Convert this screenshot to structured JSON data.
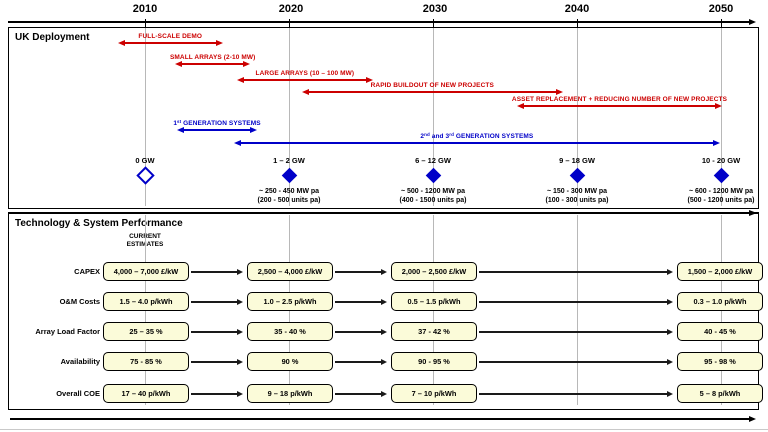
{
  "colors": {
    "red": "#CC0000",
    "blue": "#0000C8",
    "box_fill": "#FBFBD9",
    "grid": "#B8B8B8",
    "black": "#000000"
  },
  "timeline": {
    "years": [
      "2010",
      "2020",
      "2030",
      "2040",
      "2050"
    ]
  },
  "deployment": {
    "title": "UK Deployment",
    "phases": [
      {
        "label": "FULL-SCALE DEMO",
        "start": 2008.1,
        "end": 2015.4
      },
      {
        "label": "SMALL ARRAYS (2-10 MW)",
        "start": 2012.1,
        "end": 2017.3
      },
      {
        "label": "LARGE ARRAYS (10 – 100 MW)",
        "start": 2016.4,
        "end": 2025.8
      },
      {
        "label": "RAPID BUILDOUT OF NEW PROJECTS",
        "start": 2020.9,
        "end": 2039.0
      },
      {
        "label": "ASSET REPLACEMENT + REDUCING NUMBER OF NEW PROJECTS",
        "start": 2035.8,
        "end": 2050.1
      }
    ],
    "generation_systems": [
      {
        "parts": [
          {
            "text": "1"
          },
          {
            "text": "st",
            "sup": true
          },
          {
            "text": " GENERATION SYSTEMS"
          }
        ],
        "start": 2012.2,
        "end": 2017.8
      },
      {
        "parts": [
          {
            "text": "2"
          },
          {
            "text": "nd",
            "sup": true
          },
          {
            "text": " and 3"
          },
          {
            "text": "rd",
            "sup": true
          },
          {
            "text": " GENERATION SYSTEMS"
          }
        ],
        "start": 2016.2,
        "end": 2049.9
      }
    ],
    "milestones": [
      {
        "year": 2010,
        "gw": "0 GW",
        "filled": false,
        "mw_pa": "",
        "units_pa": ""
      },
      {
        "year": 2020,
        "gw": "1 – 2 GW",
        "filled": true,
        "mw_pa": "~ 250 - 450 MW pa",
        "units_pa": "(200 - 500 units pa)"
      },
      {
        "year": 2030,
        "gw": "6 – 12 GW",
        "filled": true,
        "mw_pa": "~ 500 - 1200 MW pa",
        "units_pa": "(400 - 1500 units pa)"
      },
      {
        "year": 2040,
        "gw": "9 – 18 GW",
        "filled": true,
        "mw_pa": "~ 150 - 300 MW pa",
        "units_pa": "(100 - 300 units pa)"
      },
      {
        "year": 2050,
        "gw": "10 - 20 GW",
        "filled": true,
        "mw_pa": "~ 600 - 1200 MW pa",
        "units_pa": "(500 - 1200 units pa)"
      }
    ]
  },
  "performance": {
    "title": "Technology & System Performance",
    "current_estimates_label": [
      "CURRENT",
      "ESTIMATES"
    ],
    "columns": [
      2010,
      2020,
      2030,
      2050
    ],
    "rows": [
      {
        "label": "CAPEX",
        "values": [
          "4,000 – 7,000 £/kW",
          "2,500 – 4,000 £/kW",
          "2,000 – 2,500 £/kW",
          "1,500 – 2,000 £/kW"
        ]
      },
      {
        "label": "O&M Costs",
        "values": [
          "1.5 – 4.0 p/kWh",
          "1.0 – 2.5 p/kWh",
          "0.5 – 1.5 p/kWh",
          "0.3 – 1.0 p/kWh"
        ]
      },
      {
        "label": "Array Load Factor",
        "values": [
          "25 – 35 %",
          "35 - 40 %",
          "37 - 42 %",
          "40 - 45 %"
        ]
      },
      {
        "label": "Availability",
        "values": [
          "75 - 85 %",
          "90 %",
          "90 - 95 %",
          "95 - 98 %"
        ]
      },
      {
        "label": "Overall COE",
        "values": [
          "17 – 40 p/kWh",
          "9 – 18 p/kWh",
          "7 – 10 p/kWh",
          "5 – 8 p/kWh"
        ]
      }
    ]
  }
}
